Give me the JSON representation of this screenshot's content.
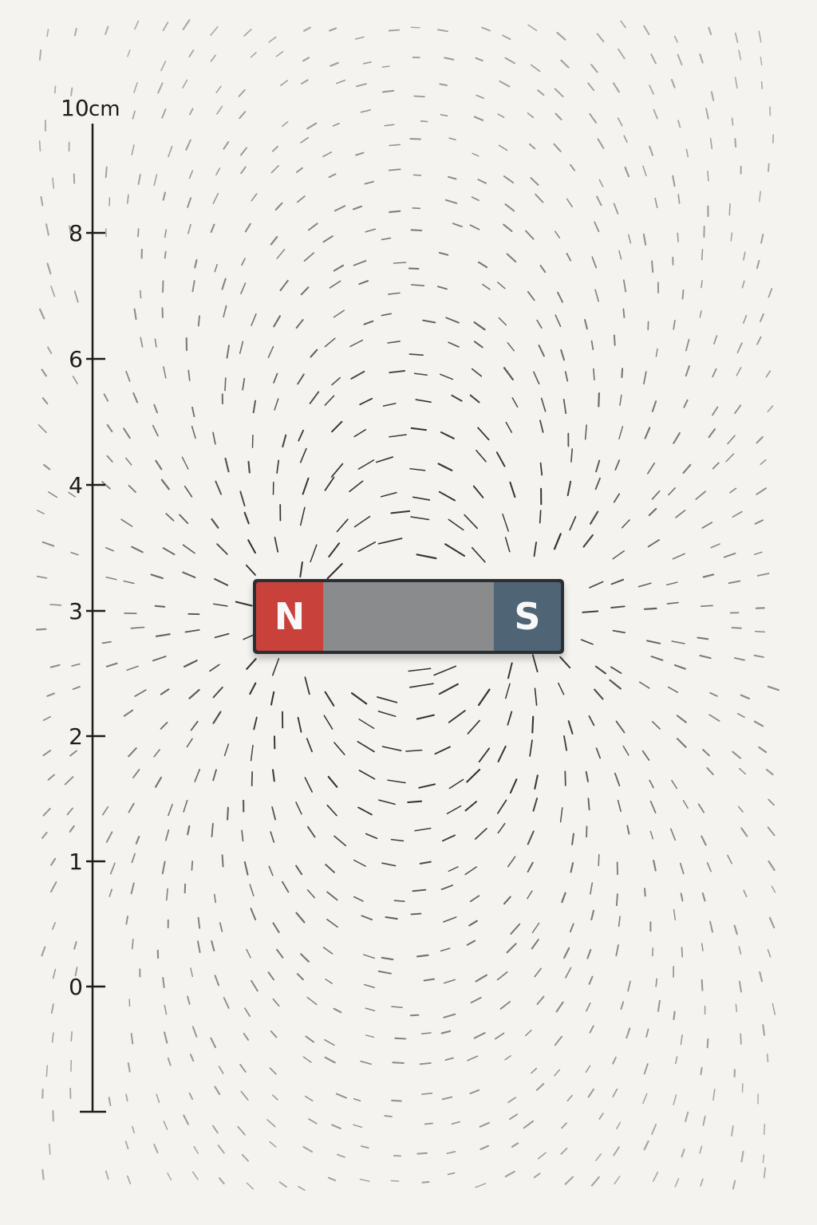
{
  "ruler": {
    "unit": "cm",
    "top_label": "10",
    "tick_labels": [
      {
        "value": 8,
        "text": "8"
      },
      {
        "value": 6,
        "text": "6"
      },
      {
        "value": 4,
        "text": "4"
      },
      {
        "value": 3,
        "text": "3"
      },
      {
        "value": 2,
        "text": "2"
      },
      {
        "value": 1,
        "text": "1"
      },
      {
        "value": 0,
        "text": "0"
      }
    ]
  },
  "magnet": {
    "north_label": "N",
    "south_label": "S",
    "north_color": "#c8413a",
    "middle_color": "#8a8b8d",
    "south_color": "#4f6475",
    "case_color": "#2b2f33"
  },
  "field": {
    "style": "iron-filings dipole pattern",
    "filing_color": "#2a2a2a"
  },
  "background_color": "#f4f3ef"
}
